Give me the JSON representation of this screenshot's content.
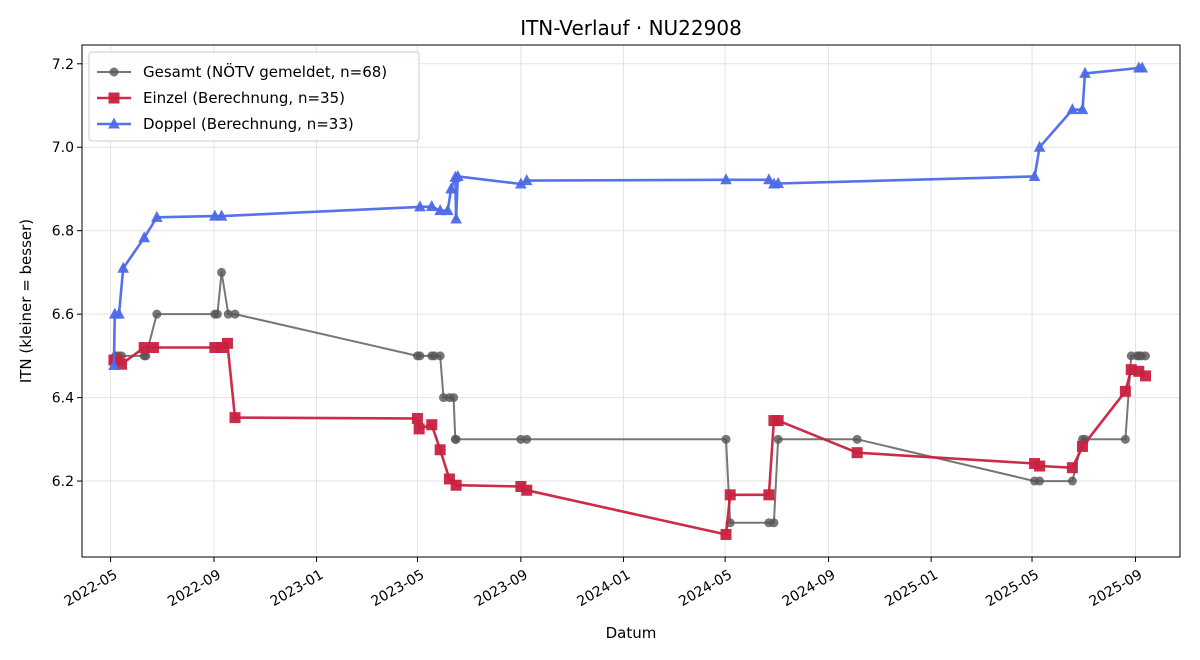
{
  "chart_data": {
    "type": "line",
    "title": "ITN-Verlauf · NU22908",
    "xlabel": "Datum",
    "ylabel": "ITN  (kleiner = besser)",
    "x_type": "date",
    "xlim": [
      "2022-03-28",
      "2025-10-24"
    ],
    "ylim": [
      6.018,
      7.245
    ],
    "x_ticks": [
      "2022-05-01",
      "2022-09-01",
      "2023-01-01",
      "2023-05-01",
      "2023-09-01",
      "2024-01-01",
      "2024-05-01",
      "2024-09-01",
      "2025-01-01",
      "2025-05-01",
      "2025-09-01"
    ],
    "x_tick_labels": [
      "2022-05",
      "2022-09",
      "2023-01",
      "2023-05",
      "2023-09",
      "2024-01",
      "2024-05",
      "2024-09",
      "2025-01",
      "2025-05",
      "2025-09"
    ],
    "y_ticks": [
      6.2,
      6.4,
      6.6,
      6.8,
      7.0,
      7.2
    ],
    "y_tick_labels": [
      "6.2",
      "6.4",
      "6.6",
      "6.8",
      "7.0",
      "7.2"
    ],
    "grid": true,
    "legend_position": "top-left",
    "series": [
      {
        "name": "Gesamt (NÖTV gemeldet, n=68)",
        "color": "#555555",
        "marker": "circle",
        "points": [
          [
            "2022-05-05",
            6.49
          ],
          [
            "2022-05-07",
            6.5
          ],
          [
            "2022-05-10",
            6.5
          ],
          [
            "2022-05-14",
            6.5
          ],
          [
            "2022-06-10",
            6.5
          ],
          [
            "2022-06-12",
            6.5
          ],
          [
            "2022-06-25",
            6.6
          ],
          [
            "2022-09-02",
            6.6
          ],
          [
            "2022-09-05",
            6.6
          ],
          [
            "2022-09-10",
            6.7
          ],
          [
            "2022-09-18",
            6.6
          ],
          [
            "2022-09-26",
            6.6
          ],
          [
            "2023-05-01",
            6.5
          ],
          [
            "2023-05-04",
            6.5
          ],
          [
            "2023-05-18",
            6.5
          ],
          [
            "2023-05-21",
            6.5
          ],
          [
            "2023-05-28",
            6.5
          ],
          [
            "2023-06-01",
            6.4
          ],
          [
            "2023-06-08",
            6.4
          ],
          [
            "2023-06-13",
            6.4
          ],
          [
            "2023-06-15",
            6.3
          ],
          [
            "2023-06-16",
            6.3
          ],
          [
            "2023-09-01",
            6.3
          ],
          [
            "2023-09-08",
            6.3
          ],
          [
            "2024-05-02",
            6.3
          ],
          [
            "2024-05-07",
            6.1
          ],
          [
            "2024-06-22",
            6.1
          ],
          [
            "2024-06-28",
            6.1
          ],
          [
            "2024-07-03",
            6.3
          ],
          [
            "2024-10-05",
            6.3
          ],
          [
            "2025-05-04",
            6.2
          ],
          [
            "2025-05-10",
            6.2
          ],
          [
            "2025-06-18",
            6.2
          ],
          [
            "2025-06-30",
            6.3
          ],
          [
            "2025-07-03",
            6.3
          ],
          [
            "2025-08-20",
            6.3
          ],
          [
            "2025-08-27",
            6.5
          ],
          [
            "2025-09-03",
            6.5
          ],
          [
            "2025-09-05",
            6.5
          ],
          [
            "2025-09-08",
            6.5
          ],
          [
            "2025-09-13",
            6.5
          ]
        ]
      },
      {
        "name": "Einzel (Berechnung, n=35)",
        "color": "#c8213f",
        "marker": "square",
        "points": [
          [
            "2022-05-05",
            6.49
          ],
          [
            "2022-05-09",
            6.49
          ],
          [
            "2022-05-14",
            6.48
          ],
          [
            "2022-06-10",
            6.52
          ],
          [
            "2022-06-21",
            6.52
          ],
          [
            "2022-09-02",
            6.52
          ],
          [
            "2022-09-10",
            6.52
          ],
          [
            "2022-09-17",
            6.53
          ],
          [
            "2022-09-26",
            6.352
          ],
          [
            "2023-05-01",
            6.35
          ],
          [
            "2023-05-03",
            6.325
          ],
          [
            "2023-05-18",
            6.335
          ],
          [
            "2023-05-28",
            6.275
          ],
          [
            "2023-06-08",
            6.205
          ],
          [
            "2023-06-16",
            6.19
          ],
          [
            "2023-09-01",
            6.187
          ],
          [
            "2023-09-08",
            6.178
          ],
          [
            "2024-05-02",
            6.072
          ],
          [
            "2024-05-07",
            6.167
          ],
          [
            "2024-06-22",
            6.167
          ],
          [
            "2024-06-28",
            6.345
          ],
          [
            "2024-07-03",
            6.345
          ],
          [
            "2024-10-05",
            6.268
          ],
          [
            "2025-05-04",
            6.242
          ],
          [
            "2025-05-10",
            6.236
          ],
          [
            "2025-06-18",
            6.232
          ],
          [
            "2025-06-30",
            6.283
          ],
          [
            "2025-08-20",
            6.415
          ],
          [
            "2025-08-27",
            6.467
          ],
          [
            "2025-09-05",
            6.463
          ],
          [
            "2025-09-13",
            6.452
          ]
        ]
      },
      {
        "name": "Doppel (Berechnung, n=33)",
        "color": "#4c6ae8",
        "marker": "triangle",
        "points": [
          [
            "2022-05-05",
            6.477
          ],
          [
            "2022-05-06",
            6.6
          ],
          [
            "2022-05-11",
            6.6
          ],
          [
            "2022-05-16",
            6.71
          ],
          [
            "2022-06-10",
            6.783
          ],
          [
            "2022-06-25",
            6.832
          ],
          [
            "2022-09-02",
            6.835
          ],
          [
            "2022-09-10",
            6.835
          ],
          [
            "2023-05-04",
            6.857
          ],
          [
            "2023-05-18",
            6.858
          ],
          [
            "2023-05-28",
            6.848
          ],
          [
            "2023-06-06",
            6.848
          ],
          [
            "2023-06-10",
            6.9
          ],
          [
            "2023-06-15",
            6.928
          ],
          [
            "2023-06-16",
            6.828
          ],
          [
            "2023-06-18",
            6.93
          ],
          [
            "2023-09-01",
            6.912
          ],
          [
            "2023-09-08",
            6.92
          ],
          [
            "2024-05-02",
            6.922
          ],
          [
            "2024-06-22",
            6.922
          ],
          [
            "2024-06-28",
            6.912
          ],
          [
            "2024-07-03",
            6.913
          ],
          [
            "2025-05-04",
            6.93
          ],
          [
            "2025-05-10",
            7.0
          ],
          [
            "2025-06-18",
            7.09
          ],
          [
            "2025-06-30",
            7.09
          ],
          [
            "2025-07-03",
            7.177
          ],
          [
            "2025-09-05",
            7.19
          ],
          [
            "2025-09-09",
            7.19
          ]
        ]
      }
    ]
  }
}
